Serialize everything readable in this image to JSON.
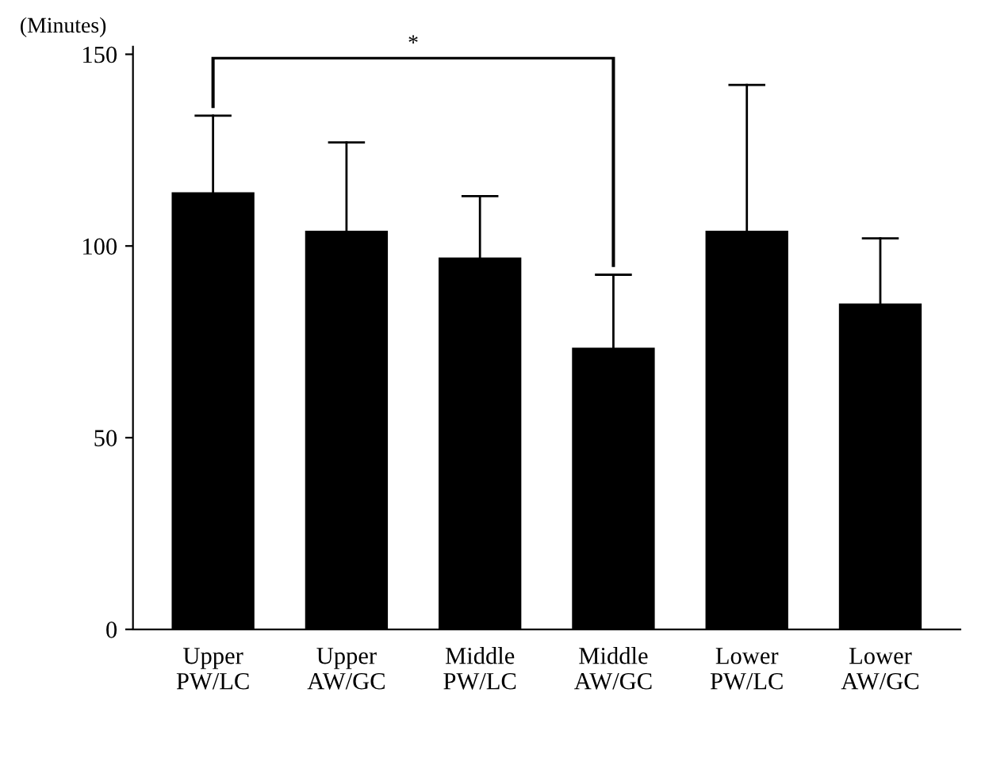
{
  "chart_data": {
    "type": "bar",
    "ylabel": "(Minutes)",
    "categories": [
      "Upper\nPW/LC",
      "Upper\nAW/GC",
      "Middle\nPW/LC",
      "Middle\nAW/GC",
      "Lower\nPW/LC",
      "Lower\nAW/GC"
    ],
    "values": [
      114,
      104,
      97,
      73.5,
      104,
      85
    ],
    "errors": [
      [
        114,
        134
      ],
      [
        104,
        127
      ],
      [
        97,
        113
      ],
      [
        73.5,
        92.5
      ],
      [
        104,
        142
      ],
      [
        85,
        102
      ]
    ],
    "color": "#000000",
    "ylim": [
      0,
      152
    ],
    "yticks": [
      0,
      50,
      100,
      150
    ],
    "grid": false,
    "legend": false,
    "annotations": [
      "*"
    ]
  }
}
